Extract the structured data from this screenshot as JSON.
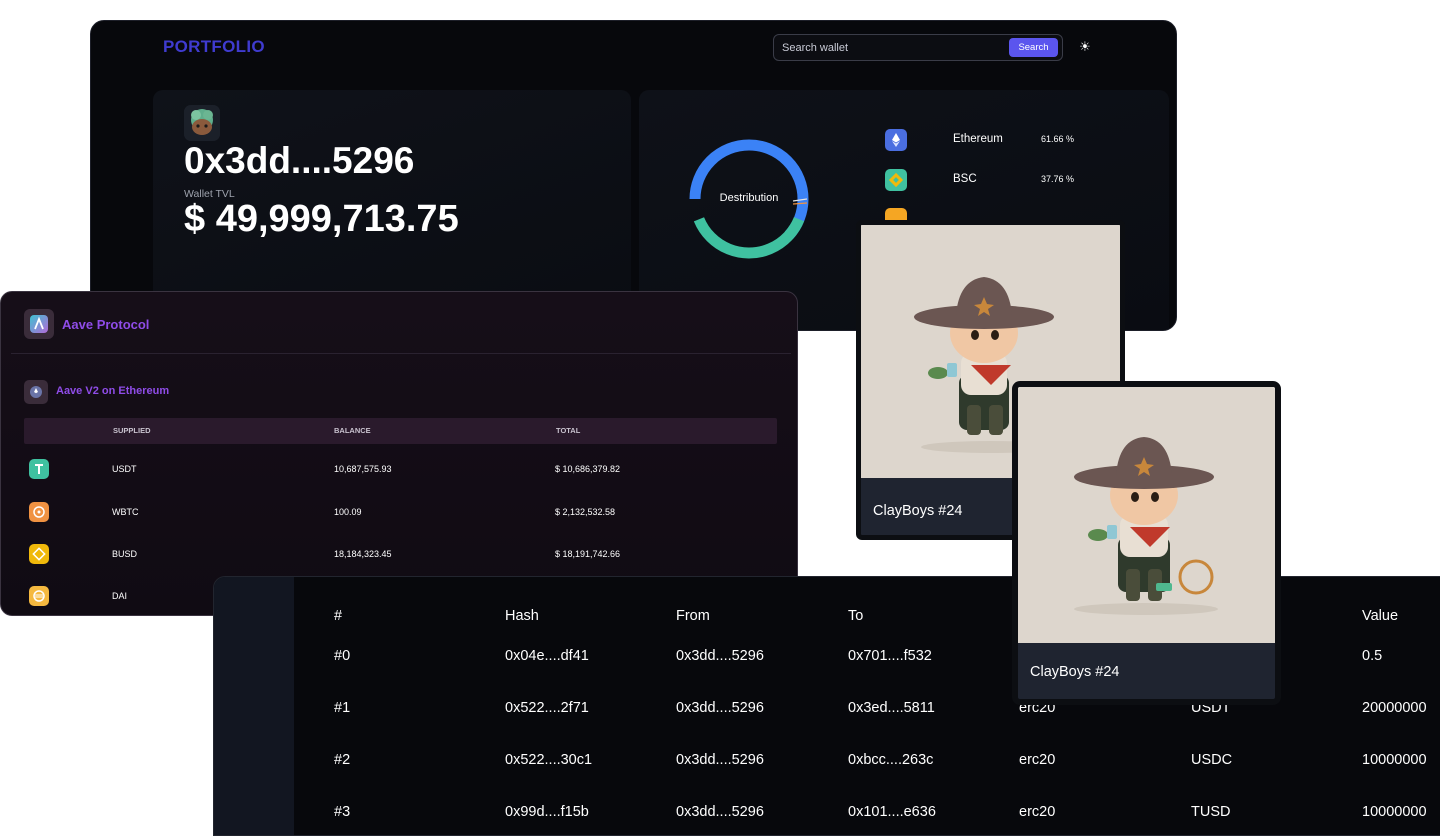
{
  "portfolio": {
    "logo": "PORTFOLIO",
    "search_placeholder": "Search wallet",
    "search_button": "Search",
    "wallet_address": "0x3dd....5296",
    "tvl_label": "Wallet TVL",
    "tvl_value": "$ 49,999,713.75",
    "distribution_label": "Destribution",
    "chains": [
      {
        "name": "Ethereum",
        "pct": "61.66 %",
        "color": "#627eea"
      },
      {
        "name": "BSC",
        "pct": "37.76 %",
        "color": "#f0b90b"
      },
      {
        "name": "",
        "pct": "",
        "color": "#f5a623"
      }
    ]
  },
  "aave": {
    "title": "Aave Protocol",
    "subtitle": "Aave V2 on Ethereum",
    "headers": {
      "supplied": "SUPPLIED",
      "balance": "BALANCE",
      "total": "TOTAL"
    },
    "rows": [
      {
        "token": "USDT",
        "balance": "10,687,575.93",
        "total": "$ 10,686,379.82",
        "color": "#3fc1a0"
      },
      {
        "token": "WBTC",
        "balance": "100.09",
        "total": "$ 2,132,532.58",
        "color": "#f09242"
      },
      {
        "token": "BUSD",
        "balance": "18,184,323.45",
        "total": "$ 18,191,742.66",
        "color": "#f0b90b"
      },
      {
        "token": "DAI",
        "balance": "",
        "total": "",
        "color": "#f5b940"
      }
    ]
  },
  "txs": {
    "headers": {
      "num": "#",
      "hash": "Hash",
      "from": "From",
      "to": "To",
      "value": "Value"
    },
    "rows": [
      {
        "num": "#0",
        "hash": "0x04e....df41",
        "from": "0x3dd....5296",
        "to": "0x701....f532",
        "type": "",
        "token": "",
        "value": "0.5"
      },
      {
        "num": "#1",
        "hash": "0x522....2f71",
        "from": "0x3dd....5296",
        "to": "0x3ed....5811",
        "type": "erc20",
        "token": "USDT",
        "value": "20000000"
      },
      {
        "num": "#2",
        "hash": "0x522....30c1",
        "from": "0x3dd....5296",
        "to": "0xbcc....263c",
        "type": "erc20",
        "token": "USDC",
        "value": "10000000"
      },
      {
        "num": "#3",
        "hash": "0x99d....f15b",
        "from": "0x3dd....5296",
        "to": "0x101....e636",
        "type": "erc20",
        "token": "TUSD",
        "value": "10000000"
      }
    ]
  },
  "nfts": [
    {
      "name": "ClayBoys #24"
    },
    {
      "name": "ClayBoys #24"
    }
  ]
}
